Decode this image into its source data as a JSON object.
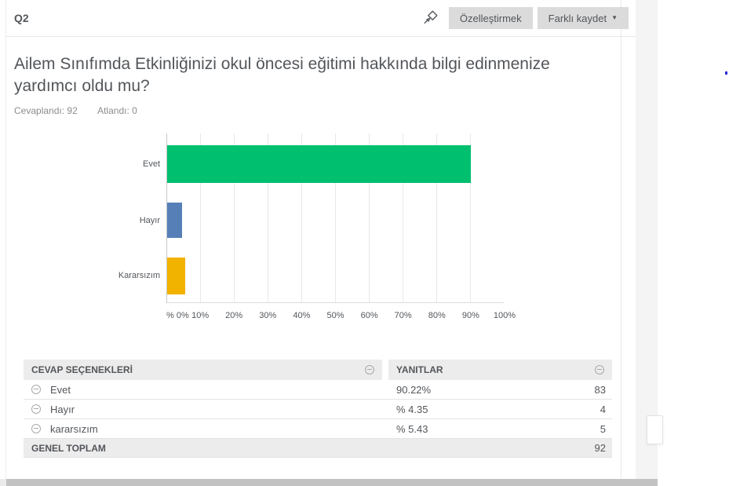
{
  "header": {
    "question_number": "Q2",
    "customize_label": "Özelleştirmek",
    "save_as_label": "Farklı kaydet",
    "save_as_caret": "▼"
  },
  "question": {
    "title": "Ailem Sınıfımda Etkinliğinizi okul öncesi eğitimi hakkında bilgi edinmenize yardımcı oldu mu?",
    "answered_label": "Cevaplandı:",
    "answered_count": "92",
    "skipped_label": "Atlandı:",
    "skipped_count": "0"
  },
  "chart_data": {
    "type": "bar",
    "orientation": "horizontal",
    "categories": [
      "Evet",
      "Hayır",
      "Kararsızım"
    ],
    "values": [
      90.22,
      4.35,
      5.43
    ],
    "colors": [
      "#00BF6F",
      "#567FB8",
      "#F2B200"
    ],
    "xlim": [
      0,
      100
    ],
    "ticks": [
      "% 0%",
      "10%",
      "20%",
      "30%",
      "40%",
      "50%",
      "60%",
      "70%",
      "80%",
      "90%",
      "100%"
    ],
    "grid": true,
    "legend": "none",
    "title": "",
    "xlabel": "",
    "ylabel": ""
  },
  "table": {
    "columns": [
      {
        "label": "CEVAP SEÇENEKLERİ"
      },
      {
        "label": "YANITLAR"
      }
    ],
    "rows": [
      {
        "label": "Evet",
        "percent": "90.22%",
        "count": "83"
      },
      {
        "label": "Hayır",
        "percent": "% 4.35",
        "count": "4"
      },
      {
        "label": "kararsızım",
        "percent": "% 5.43",
        "count": "5"
      }
    ],
    "total_label": "GENEL TOPLAM",
    "total_count": "92"
  },
  "icons": {
    "pin": "pushpin-icon",
    "caret": "chevron-down-icon",
    "row_toggle": "minus-circle-icon"
  }
}
